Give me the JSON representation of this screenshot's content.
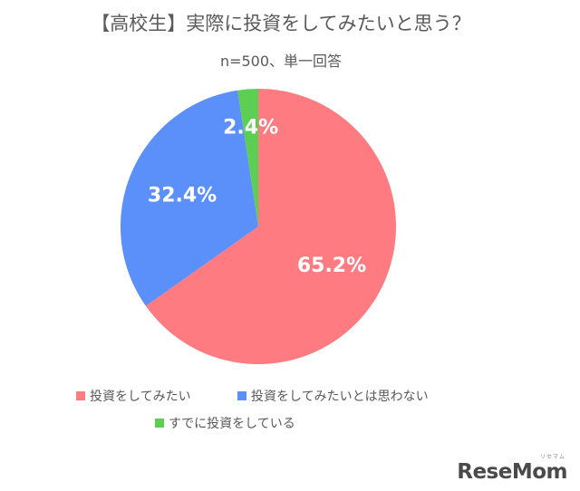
{
  "chart_data": {
    "type": "pie",
    "title": "【高校生】実際に投資をしてみたいと思う？",
    "subtitle": "n=500、単一回答",
    "slices": [
      {
        "label": "投資をしてみたい",
        "value": 65.2,
        "value_label": "65.2%",
        "color": "#ff7b82"
      },
      {
        "label": "投資をしてみたいとは思わない",
        "value": 32.4,
        "value_label": "32.4%",
        "color": "#5b8ff9"
      },
      {
        "label": "すでに投資をしている",
        "value": 2.4,
        "value_label": "2.4%",
        "color": "#5ccf53"
      }
    ],
    "start_angle": "12 o'clock",
    "direction": "clockwise",
    "legend_position": "bottom"
  },
  "logo": {
    "text": "ReseMom",
    "sub": "リセマム"
  }
}
